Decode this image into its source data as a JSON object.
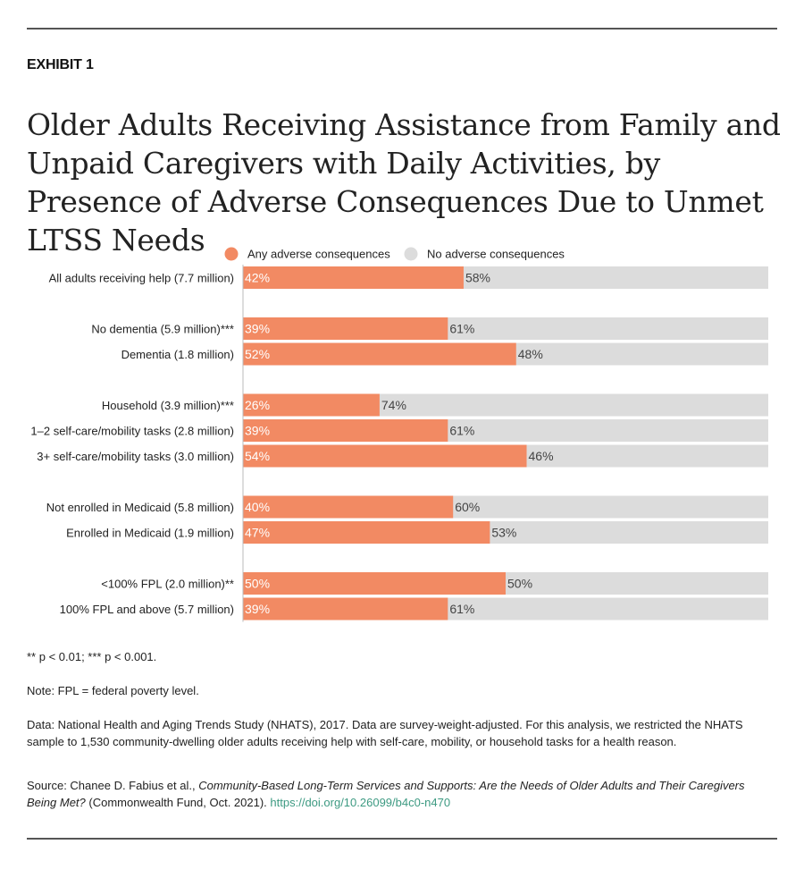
{
  "exhibit_label": "EXHIBIT 1",
  "title": "Older Adults Receiving Assistance from Family and Unpaid Caregivers with Daily Activities, by Presence of Adverse Consequences Due to Unmet LTSS Needs",
  "colors": {
    "any": "#f28a63",
    "none": "#dcdcdc",
    "link": "#3d9a82"
  },
  "chart_data": {
    "type": "bar",
    "orientation": "horizontal",
    "stacked": true,
    "title": "Older Adults Receiving Assistance from Family and Unpaid Caregivers with Daily Activities, by Presence of Adverse Consequences Due to Unmet LTSS Needs",
    "xlim": [
      0,
      100
    ],
    "value_suffix": "%",
    "legend": [
      "Any adverse consequences",
      "No adverse consequences"
    ],
    "legend_position": "top",
    "categories": [
      "All adults receiving help (7.7 million)",
      "No dementia (5.9 million)***",
      "Dementia (1.8 million)",
      "Household (3.9 million)***",
      "1–2 self-care/mobility tasks (2.8 million)",
      "3+ self-care/mobility tasks (3.0 million)",
      "Not enrolled in Medicaid (5.8 million)",
      "Enrolled in Medicaid (1.9 million)",
      "<100% FPL (2.0 million)**",
      "100% FPL and above (5.7 million)"
    ],
    "groups": [
      1,
      2,
      3,
      2,
      2
    ],
    "series": [
      {
        "name": "Any adverse consequences",
        "values": [
          42,
          39,
          52,
          26,
          39,
          54,
          40,
          47,
          50,
          39
        ]
      },
      {
        "name": "No adverse consequences",
        "values": [
          58,
          61,
          48,
          74,
          61,
          46,
          60,
          53,
          50,
          61
        ]
      }
    ]
  },
  "footnotes": {
    "significance": "** p < 0.01; *** p < 0.001.",
    "note": "Note: FPL = federal poverty level.",
    "data": "Data: National Health and Aging Trends Study (NHATS), 2017. Data are survey-weight-adjusted. For this analysis, we restricted the NHATS sample to 1,530 community-dwelling older adults receiving help with self-care, mobility, or household tasks for a health reason.",
    "source_prefix": "Source: Chanee D. Fabius et al., ",
    "source_title": "Community-Based Long-Term Services and Supports: Are the Needs of Older Adults and Their Caregivers Being Met?",
    "source_suffix": " (Commonwealth Fund, Oct. 2021). ",
    "source_link": "https://doi.org/10.26099/b4c0-n470"
  }
}
